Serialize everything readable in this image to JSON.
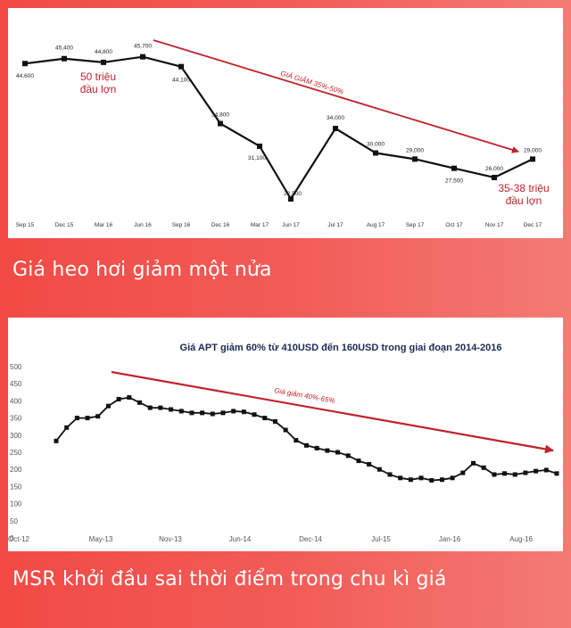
{
  "captions": {
    "top": "Giá heo hơi giảm một nửa",
    "bottom": "MSR khởi đầu sai thời điểm trong chu kì giá"
  },
  "colors": {
    "background": "#f24a45",
    "arrow": "#c0222b",
    "line": "#111111",
    "annotation": "#c0222b"
  },
  "chart_data": [
    {
      "type": "line",
      "title": "",
      "xlabel": "",
      "ylabel": "",
      "categories": [
        "Sep 15",
        "Dec 15",
        "Mar 16",
        "Jun 16",
        "Sep 16",
        "Dec 16",
        "Mar 17",
        "Jun 17",
        "Jul 17",
        "Aug 17",
        "Sep 17",
        "Oct 17",
        "Nov 17",
        "Dec 17"
      ],
      "values": [
        44600,
        45400,
        44800,
        45700,
        44100,
        34800,
        31100,
        22500,
        34000,
        30000,
        29000,
        27500,
        26000,
        29000
      ],
      "data_labels": [
        "44,600",
        "45,400",
        "44,800",
        "45,700",
        "44,100",
        "34,800",
        "31,100",
        "22,500",
        "34,000",
        "30,000",
        "29,000",
        "27,500",
        "26,000",
        "29,000"
      ],
      "ylim": [
        20000,
        48500
      ],
      "grid": false,
      "trend_arrow": {
        "label": "GIÁ GIẢM 35%-50%"
      },
      "annotations": [
        {
          "lines": [
            "50 triệu",
            "đầu lợn"
          ]
        },
        {
          "lines": [
            "35-38 triệu",
            "đầu lợn"
          ]
        }
      ]
    },
    {
      "type": "line",
      "title": "Giá APT giảm 60% từ 410USD đến 160USD trong giai đoạn 2014-2016",
      "xlabel": "",
      "ylabel": "",
      "x_ticks": [
        "Oct-12",
        "May-13",
        "Nov-13",
        "Jun-14",
        "Dec-14",
        "Jul-15",
        "Jan-16",
        "Aug-16"
      ],
      "y_ticks": [
        "0",
        "50",
        "100",
        "150",
        "200",
        "250",
        "300",
        "350",
        "400",
        "450",
        "500"
      ],
      "ylim": [
        0,
        500
      ],
      "grid": false,
      "values": [
        283,
        322,
        350,
        350,
        355,
        385,
        405,
        410,
        395,
        380,
        380,
        375,
        370,
        365,
        365,
        362,
        365,
        370,
        368,
        360,
        350,
        340,
        315,
        285,
        270,
        262,
        255,
        250,
        240,
        225,
        215,
        200,
        185,
        175,
        170,
        175,
        168,
        170,
        175,
        190,
        218,
        205,
        185,
        188,
        185,
        190,
        195,
        198,
        188
      ],
      "trend_arrow": {
        "label": "Giá giảm 40%-65%"
      }
    }
  ]
}
